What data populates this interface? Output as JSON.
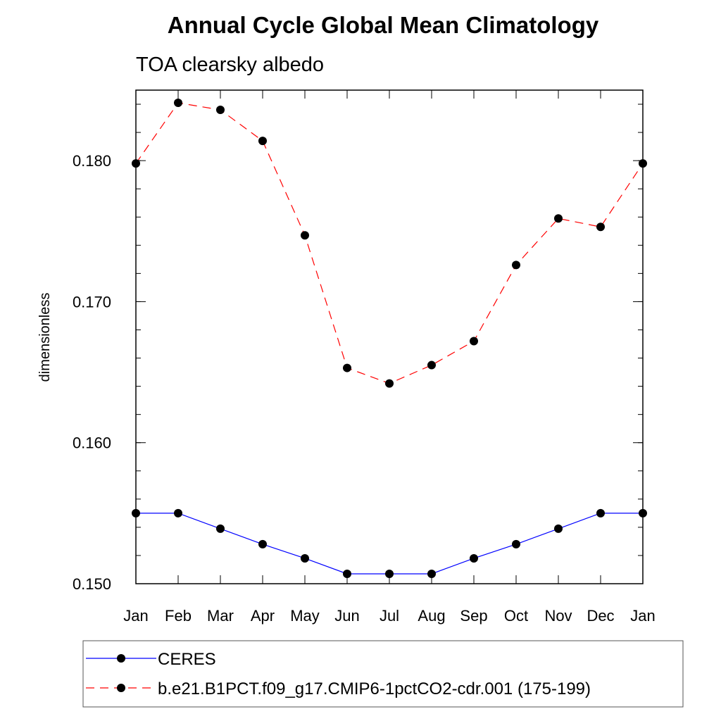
{
  "chart_data": {
    "type": "line",
    "title": "Annual Cycle Global Mean Climatology",
    "subtitle": "TOA clearsky albedo",
    "ylabel": "dimensionless",
    "xlabel": "",
    "categories": [
      "Jan",
      "Feb",
      "Mar",
      "Apr",
      "May",
      "Jun",
      "Jul",
      "Aug",
      "Sep",
      "Oct",
      "Nov",
      "Dec",
      "Jan"
    ],
    "ylim": [
      0.15,
      0.185
    ],
    "yticks": [
      0.15,
      0.16,
      0.17,
      0.18
    ],
    "ytick_labels": [
      "0.150",
      "0.160",
      "0.170",
      "0.180"
    ],
    "grid": false,
    "legend_placement": "bottom",
    "series": [
      {
        "name": "CERES",
        "color": "#0000ff",
        "line_style": "solid",
        "marker": "filled-circle",
        "values": [
          0.155,
          0.155,
          0.1539,
          0.1528,
          0.1518,
          0.1507,
          0.1507,
          0.1507,
          0.1518,
          0.1528,
          0.1539,
          0.155,
          0.155
        ]
      },
      {
        "name": "b.e21.B1PCT.f09_g17.CMIP6-1pctCO2-cdr.001 (175-199)",
        "color": "#ff0000",
        "line_style": "dashed",
        "marker": "filled-circle",
        "values": [
          0.1798,
          0.1841,
          0.1836,
          0.1814,
          0.1747,
          0.1653,
          0.1642,
          0.1655,
          0.1672,
          0.1726,
          0.1759,
          0.1753,
          0.1798
        ]
      }
    ]
  }
}
